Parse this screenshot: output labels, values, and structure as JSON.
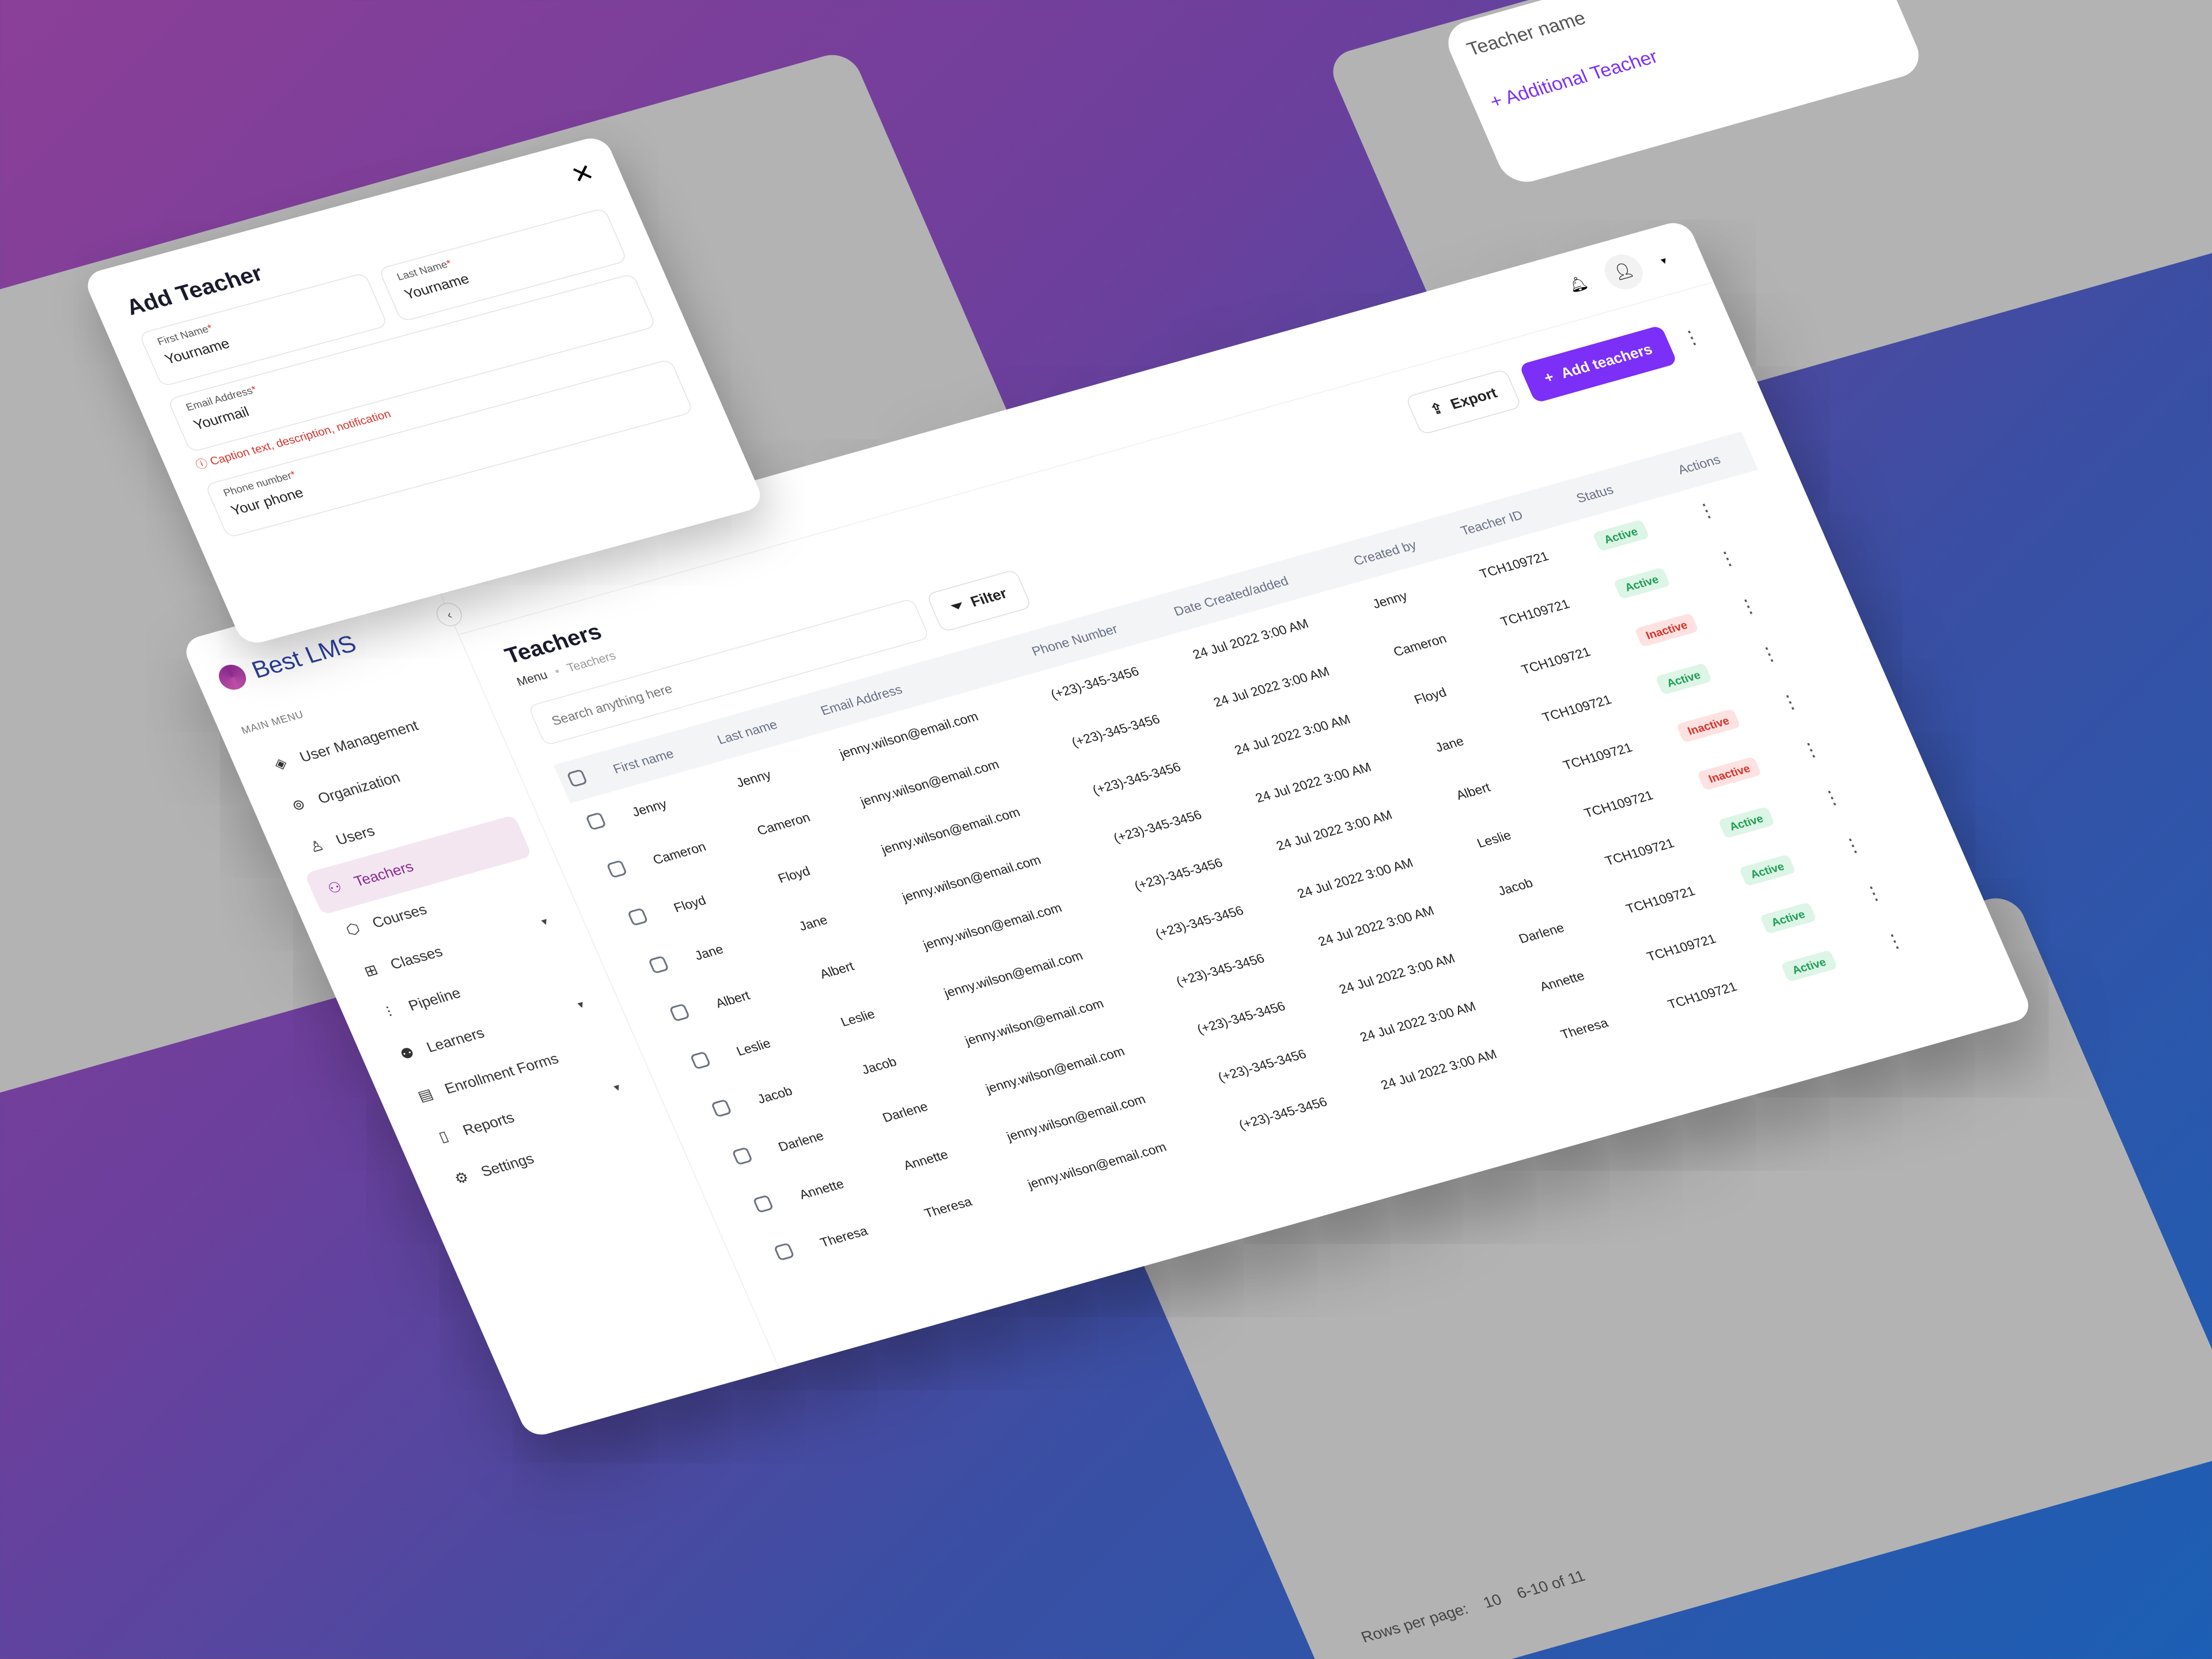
{
  "brand": {
    "name": "Best LMS"
  },
  "sidebar": {
    "section_label": "MAIN MENU",
    "items": [
      {
        "label": "User Management",
        "icon": "layers-icon"
      },
      {
        "label": "Organization",
        "icon": "lifebuoy-icon"
      },
      {
        "label": "Users",
        "icon": "user-icon"
      },
      {
        "label": "Teachers",
        "icon": "teacher-icon",
        "active": true
      },
      {
        "label": "Courses",
        "icon": "box-icon"
      },
      {
        "label": "Classes",
        "icon": "grid-icon",
        "caret": true
      },
      {
        "label": "Pipeline",
        "icon": "sliders-icon"
      },
      {
        "label": "Learners",
        "icon": "users-icon",
        "caret": true
      },
      {
        "label": "Enrollment Forms",
        "icon": "file-icon"
      },
      {
        "label": "Reports",
        "icon": "document-icon",
        "caret": true
      },
      {
        "label": "Settings",
        "icon": "gear-icon"
      }
    ]
  },
  "page": {
    "title": "Teachers",
    "breadcrumb": [
      "Menu",
      "Teachers"
    ],
    "export_label": "Export",
    "add_label": "Add teachers",
    "search_placeholder": "Search anything here",
    "filter_label": "Filter"
  },
  "colors": {
    "accent": "#7b2ff7",
    "active_nav": "#f3e6f1",
    "active": "#1f9d55",
    "inactive": "#d6332b"
  },
  "table": {
    "columns": [
      "First name",
      "Last name",
      "Email Address",
      "Phone Number",
      "Date Created/added",
      "Created by",
      "Teacher ID",
      "Status",
      "Actions"
    ],
    "rows": [
      [
        "Jenny",
        "Jenny",
        "jenny.wilson@email.com",
        "(+23)-345-3456",
        "24 Jul 2022 3:00 AM",
        "Jenny",
        "TCH109721",
        "Active"
      ],
      [
        "Cameron",
        "Cameron",
        "jenny.wilson@email.com",
        "(+23)-345-3456",
        "24 Jul 2022 3:00 AM",
        "Cameron",
        "TCH109721",
        "Active"
      ],
      [
        "Floyd",
        "Floyd",
        "jenny.wilson@email.com",
        "(+23)-345-3456",
        "24 Jul 2022 3:00 AM",
        "Floyd",
        "TCH109721",
        "Inactive"
      ],
      [
        "Jane",
        "Jane",
        "jenny.wilson@email.com",
        "(+23)-345-3456",
        "24 Jul 2022 3:00 AM",
        "Jane",
        "TCH109721",
        "Active"
      ],
      [
        "Albert",
        "Albert",
        "jenny.wilson@email.com",
        "(+23)-345-3456",
        "24 Jul 2022 3:00 AM",
        "Albert",
        "TCH109721",
        "Inactive"
      ],
      [
        "Leslie",
        "Leslie",
        "jenny.wilson@email.com",
        "(+23)-345-3456",
        "24 Jul 2022 3:00 AM",
        "Leslie",
        "TCH109721",
        "Inactive"
      ],
      [
        "Jacob",
        "Jacob",
        "jenny.wilson@email.com",
        "(+23)-345-3456",
        "24 Jul 2022 3:00 AM",
        "Jacob",
        "TCH109721",
        "Active"
      ],
      [
        "Darlene",
        "Darlene",
        "jenny.wilson@email.com",
        "(+23)-345-3456",
        "24 Jul 2022 3:00 AM",
        "Darlene",
        "TCH109721",
        "Active"
      ],
      [
        "Annette",
        "Annette",
        "jenny.wilson@email.com",
        "(+23)-345-3456",
        "24 Jul 2022 3:00 AM",
        "Annette",
        "TCH109721",
        "Active"
      ],
      [
        "Theresa",
        "Theresa",
        "jenny.wilson@email.com",
        "(+23)-345-3456",
        "24 Jul 2022 3:00 AM",
        "Theresa",
        "TCH109721",
        "Active"
      ]
    ]
  },
  "modal": {
    "title": "Add Teacher",
    "first_name_label": "First Name",
    "first_name_value": "Yourname",
    "last_name_label": "Last Name",
    "last_name_value": "Yourname",
    "email_label": "Email Address",
    "email_value": "Yourmail",
    "caption": "Caption text, description, notification",
    "phone_label": "Phone number",
    "phone_placeholder": "Your phone",
    "required_mark": "*"
  },
  "background": {
    "teacher_name_placeholder": "Teacher name",
    "additional_teacher": "+ Additional Teacher",
    "rows_per_page": "Rows per page:",
    "page_size": "10",
    "range": "6-10 of 11"
  }
}
